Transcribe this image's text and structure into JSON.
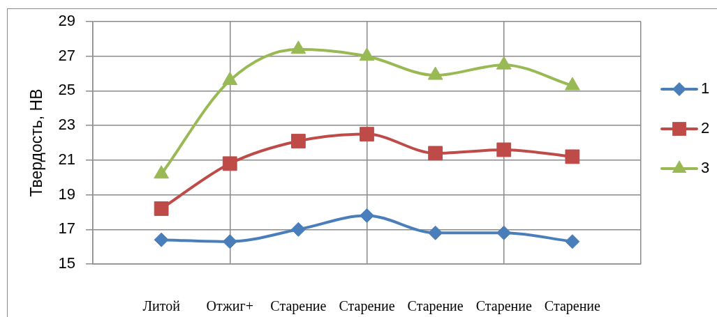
{
  "chart_data": {
    "type": "line",
    "ylabel": "Твердость, НВ",
    "categories": [
      "Литой",
      "Отжиг+",
      "Старение",
      "Старение",
      "Старение",
      "Старение",
      "Старение"
    ],
    "ylim": [
      15,
      29
    ],
    "yticks": [
      15,
      17,
      19,
      21,
      23,
      25,
      27,
      29
    ],
    "grid": true,
    "legend": "right",
    "series": [
      {
        "name": "1",
        "color": "#4a7ebb",
        "marker": "diamond",
        "values": [
          16.4,
          16.3,
          17.0,
          17.8,
          16.8,
          16.8,
          16.3
        ]
      },
      {
        "name": "2",
        "color": "#be4b48",
        "marker": "square",
        "values": [
          18.2,
          20.8,
          22.1,
          22.5,
          21.4,
          21.6,
          21.2
        ]
      },
      {
        "name": "3",
        "color": "#98b954",
        "marker": "triangle",
        "values": [
          20.2,
          25.6,
          27.4,
          27.0,
          25.9,
          26.5,
          25.3
        ]
      }
    ]
  }
}
